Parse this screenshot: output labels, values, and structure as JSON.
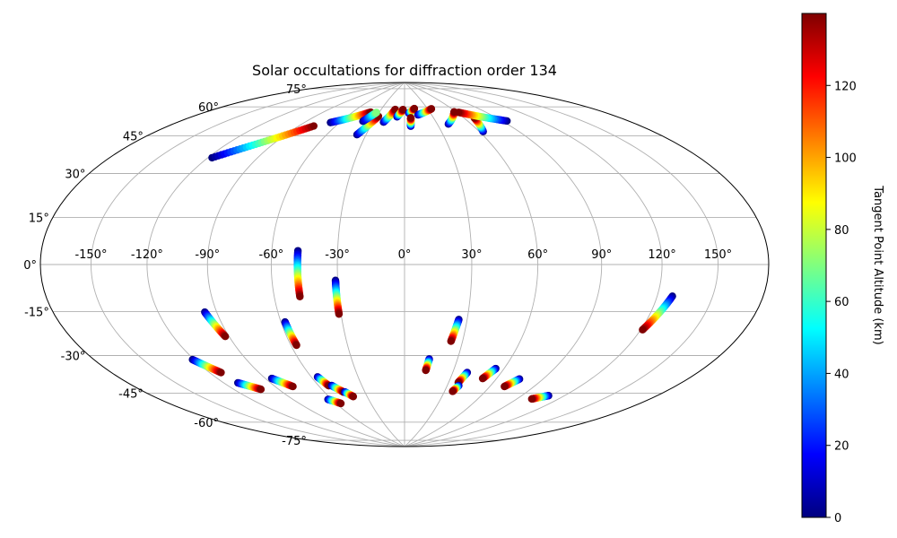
{
  "chart_data": {
    "type": "scatter",
    "projection": "hammer",
    "title": "Solar occultations for diffraction order 134",
    "xlabel": "",
    "ylabel": "",
    "colorbar": {
      "label": "Tangent Point Altitude (km)",
      "colormap": "jet",
      "range": [
        0,
        140
      ],
      "ticks": [
        "0",
        "20",
        "40",
        "60",
        "80",
        "100",
        "120"
      ]
    },
    "lon_ticks": [
      "-150°",
      "-120°",
      "-90°",
      "-60°",
      "-30°",
      "0°",
      "30°",
      "60°",
      "90°",
      "120°",
      "150°"
    ],
    "lat_ticks": [
      "-75°",
      "-60°",
      "-45°",
      "-30°",
      "-15°",
      "0°",
      "15°",
      "30°",
      "45°",
      "60°",
      "75°"
    ],
    "grid": true,
    "tracks": [
      {
        "lon_start": -117.5,
        "lat_start": 43.5,
        "lon_end": -78,
        "lat_end": 62.5,
        "alt_start": 0,
        "alt_end": 140
      },
      {
        "lon_start": -68,
        "lat_start": 65,
        "lon_end": -40,
        "lat_end": 72,
        "alt_start": 0,
        "alt_end": 140
      },
      {
        "lon_start": -37,
        "lat_start": 60,
        "lon_end": -28,
        "lat_end": 70,
        "alt_start": 0,
        "alt_end": 140
      },
      {
        "lon_start": -40,
        "lat_start": 67,
        "lon_end": -33,
        "lat_end": 72,
        "alt_start": 0,
        "alt_end": 70
      },
      {
        "lon_start": -20,
        "lat_start": 67,
        "lon_end": -12,
        "lat_end": 74,
        "alt_start": 0,
        "alt_end": 140
      },
      {
        "lon_start": -8,
        "lat_start": 70,
        "lon_end": -2,
        "lat_end": 74,
        "alt_start": 0,
        "alt_end": 140
      },
      {
        "lon_start": 5,
        "lat_start": 72,
        "lon_end": 13,
        "lat_end": 74.5,
        "alt_start": 0,
        "alt_end": 140
      },
      {
        "lon_start": 5.5,
        "lat_start": 65,
        "lon_end": 6.5,
        "lat_end": 69.5,
        "alt_start": 0,
        "alt_end": 140
      },
      {
        "lon_start": 15,
        "lat_start": 71,
        "lon_end": 35,
        "lat_end": 74,
        "alt_start": 0,
        "alt_end": 140
      },
      {
        "lon_start": 40,
        "lat_start": 65.5,
        "lon_end": 58,
        "lat_end": 71.5,
        "alt_start": 0,
        "alt_end": 140
      },
      {
        "lon_start": 63,
        "lat_start": 60.5,
        "lon_end": 70,
        "lat_end": 67.5,
        "alt_start": 0,
        "alt_end": 140
      },
      {
        "lon_start": 94,
        "lat_start": 64,
        "lon_end": 62,
        "lat_end": 71,
        "alt_start": 0,
        "alt_end": 140
      },
      {
        "lon_start": -48,
        "lat_start": 6,
        "lon_end": -48,
        "lat_end": -14,
        "alt_start": 0,
        "alt_end": 140
      },
      {
        "lon_start": -31,
        "lat_start": -7,
        "lon_end": -31,
        "lat_end": -22,
        "alt_start": 0,
        "alt_end": 140
      },
      {
        "lon_start": -96,
        "lat_start": -19.5,
        "lon_end": -92,
        "lat_end": -30,
        "alt_start": 0,
        "alt_end": 140
      },
      {
        "lon_start": -58,
        "lat_start": -25,
        "lon_end": -57,
        "lat_end": -35.5,
        "alt_start": 0,
        "alt_end": 140
      },
      {
        "lon_start": -121,
        "lat_start": -38,
        "lon_end": -113,
        "lat_end": -44.5,
        "alt_start": 0,
        "alt_end": 140
      },
      {
        "lon_start": -111,
        "lat_start": -49.5,
        "lon_end": -102,
        "lat_end": -53.5,
        "alt_start": 0,
        "alt_end": 140
      },
      {
        "lon_start": -86,
        "lat_start": -49.5,
        "lon_end": -78,
        "lat_end": -54,
        "alt_start": 0,
        "alt_end": 140
      },
      {
        "lon_start": -56,
        "lat_start": -50.5,
        "lon_end": -53,
        "lat_end": -55,
        "alt_start": 0,
        "alt_end": 140
      },
      {
        "lon_start": -51,
        "lat_start": -55,
        "lon_end": -46,
        "lat_end": -58.5,
        "alt_start": 0,
        "alt_end": 140
      },
      {
        "lon_start": -45,
        "lat_start": -58.5,
        "lon_end": -41,
        "lat_end": -61,
        "alt_start": 0,
        "alt_end": 140
      },
      {
        "lon_start": -63,
        "lat_start": -61.5,
        "lon_end": -56,
        "lat_end": -64,
        "alt_start": 0,
        "alt_end": 140
      },
      {
        "lon_start": 26,
        "lat_start": -24.5,
        "lon_end": 24,
        "lat_end": -34.5,
        "alt_start": 0,
        "alt_end": 140
      },
      {
        "lon_start": 14,
        "lat_start": -43,
        "lon_end": 13,
        "lat_end": -48.5,
        "alt_start": 0,
        "alt_end": 140
      },
      {
        "lon_start": 39,
        "lat_start": -49,
        "lon_end": 36.5,
        "lat_end": -54,
        "alt_start": 0,
        "alt_end": 140
      },
      {
        "lon_start": 38,
        "lat_start": -55.5,
        "lon_end": 36,
        "lat_end": -58.5,
        "alt_start": 0,
        "alt_end": 140
      },
      {
        "lon_start": 55,
        "lat_start": -46.5,
        "lon_end": 51,
        "lat_end": -51.5,
        "alt_start": 0,
        "alt_end": 140
      },
      {
        "lon_start": 75,
        "lat_start": -50.5,
        "lon_end": 70,
        "lat_end": -54.5,
        "alt_start": 0,
        "alt_end": 140
      },
      {
        "lon_start": 109,
        "lat_start": -56,
        "lon_end": 101,
        "lat_end": -58.5,
        "alt_start": 0,
        "alt_end": 140
      },
      {
        "lon_start": 128,
        "lat_start": -12,
        "lon_end": 121,
        "lat_end": -25.5,
        "alt_start": 0,
        "alt_end": 140
      }
    ]
  }
}
